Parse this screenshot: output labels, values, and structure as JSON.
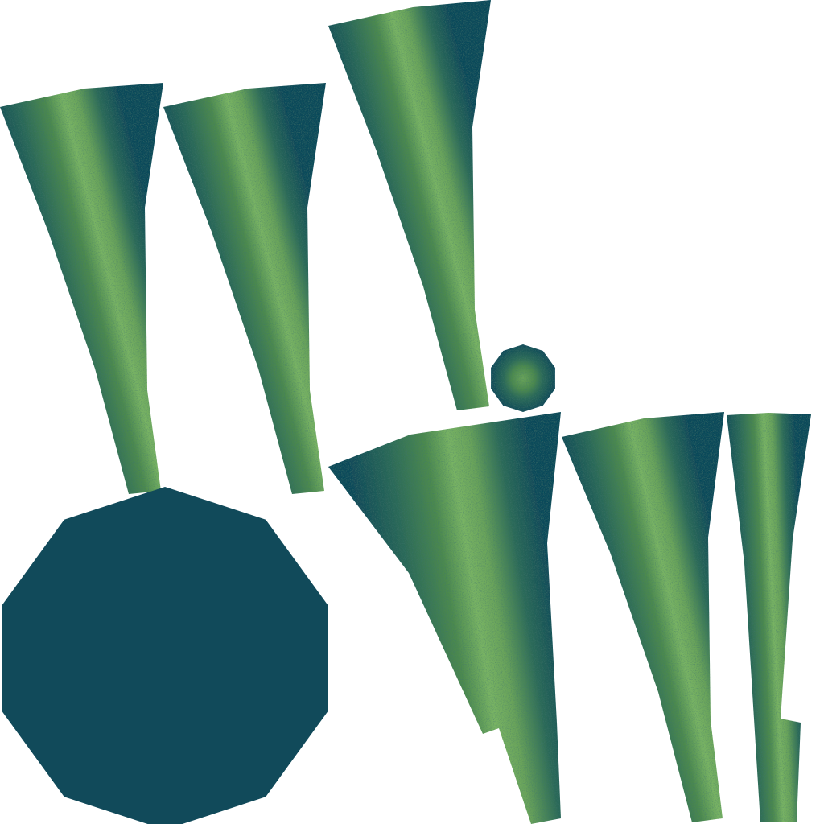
{
  "image": {
    "kind": "texture-atlas",
    "background_color": "#ffffff"
  },
  "palette": {
    "dark": "#114a5a",
    "mid": "#2c6a58",
    "green": "#4d8a4e",
    "light": "#6aa45a",
    "highlight": "#79b464"
  },
  "pieces": [
    {
      "name": "leaf-strip-1",
      "shape": "tapered-strip"
    },
    {
      "name": "leaf-strip-2",
      "shape": "tapered-strip"
    },
    {
      "name": "leaf-strip-3",
      "shape": "tapered-strip"
    },
    {
      "name": "leaf-strip-4",
      "shape": "tapered-strip"
    },
    {
      "name": "leaf-strip-5",
      "shape": "tapered-strip"
    },
    {
      "name": "leaf-strip-6",
      "shape": "tapered-strip"
    },
    {
      "name": "small-disc",
      "shape": "decagon"
    },
    {
      "name": "large-disc",
      "shape": "decagon"
    }
  ]
}
